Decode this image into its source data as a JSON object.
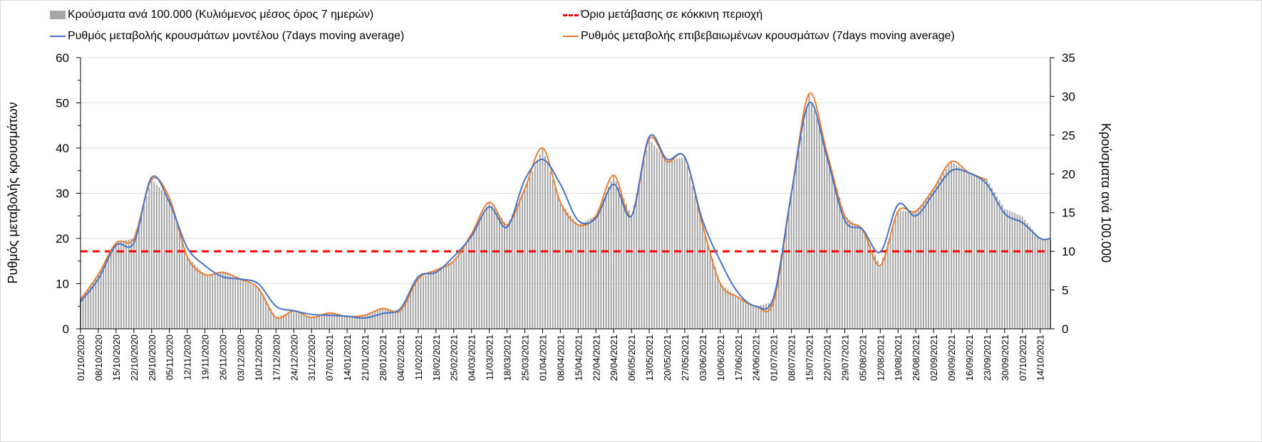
{
  "chart_data": {
    "type": "bar+line",
    "legend": [
      {
        "label": "Κρούσματα ανά 100.000 (Κυλιόμενος μέσος όρος 7 ημερών)",
        "color": "#a6a6a6",
        "kind": "bar"
      },
      {
        "label": "Όριο μετάβασης σε κόκκινη περιοχή",
        "color": "#ff0000",
        "kind": "dashed"
      },
      {
        "label": "Ρυθμός μεταβολής κρουσμάτων μοντέλου (7days moving average)",
        "color": "#4472c4",
        "kind": "line"
      },
      {
        "label": "Ρυθμός μεταβολής επιβεβαιωμένων κρουσμάτων (7days moving average)",
        "color": "#ed7d31",
        "kind": "line"
      }
    ],
    "legend_position": "top",
    "ylabel_left": "Ρυθμός μεταβολής κρουσμάτων",
    "ylabel_right": "Κρούσματα ανά 100.000",
    "ylim_left": [
      0,
      60
    ],
    "yticks_left": [
      0,
      10,
      20,
      30,
      40,
      50,
      60
    ],
    "ylim_right": [
      0,
      35
    ],
    "yticks_right": [
      0,
      5,
      10,
      15,
      20,
      25,
      30,
      35
    ],
    "grid": true,
    "x_tick_labels": [
      "01/10/2020",
      "08/10/2020",
      "15/10/2020",
      "22/10/2020",
      "29/10/2020",
      "05/11/2020",
      "12/11/2020",
      "19/11/2020",
      "26/11/2020",
      "03/12/2020",
      "10/12/2020",
      "17/12/2020",
      "24/12/2020",
      "31/12/2020",
      "07/01/2021",
      "14/01/2021",
      "21/01/2021",
      "28/01/2021",
      "04/02/2021",
      "11/02/2021",
      "18/02/2021",
      "25/02/2021",
      "04/03/2021",
      "11/03/2021",
      "18/03/2021",
      "25/03/2021",
      "01/04/2021",
      "08/04/2021",
      "15/04/2021",
      "22/04/2021",
      "29/04/2021",
      "06/05/2021",
      "13/05/2021",
      "20/05/2021",
      "27/05/2021",
      "03/06/2021",
      "10/06/2021",
      "17/06/2021",
      "24/06/2021",
      "01/07/2021",
      "08/07/2021",
      "15/07/2021",
      "22/07/2021",
      "29/07/2021",
      "05/08/2021",
      "12/08/2021",
      "19/08/2021",
      "26/08/2021",
      "02/09/2021",
      "09/09/2021",
      "16/09/2021",
      "23/09/2021",
      "30/09/2021",
      "07/10/2021",
      "14/10/2021"
    ],
    "sample_days": [
      0,
      7,
      14,
      21,
      28,
      35,
      42,
      49,
      56,
      63,
      70,
      77,
      84,
      91,
      98,
      105,
      112,
      119,
      126,
      133,
      140,
      147,
      154,
      161,
      168,
      175,
      182,
      189,
      196,
      203,
      210,
      217,
      224,
      231,
      238,
      245,
      252,
      259,
      266,
      273,
      280,
      287,
      294,
      301,
      308,
      315,
      322,
      329,
      336,
      343,
      350,
      357,
      364,
      371,
      378,
      382
    ],
    "threshold_right": 10,
    "bars_per_100k": [
      3.8,
      7,
      11.1,
      11.7,
      19.3,
      16.9,
      9.3,
      7,
      7.3,
      6.4,
      5.3,
      1.5,
      2.3,
      1.5,
      2,
      1.6,
      1.8,
      2.6,
      2.3,
      6.4,
      7.6,
      8.8,
      12.3,
      16.3,
      13.4,
      18.1,
      23.3,
      16.3,
      13.4,
      14.6,
      19.8,
      14.6,
      24.5,
      21.6,
      22.2,
      13.4,
      5.8,
      4.1,
      2.9,
      3.5,
      17.5,
      30.3,
      22.8,
      14.6,
      12.8,
      8.2,
      15.2,
      15.2,
      18.1,
      21.6,
      20.1,
      19.3,
      15.5,
      14.5,
      11.5,
      11.5
    ],
    "model_rate": [
      6,
      11,
      18.5,
      19,
      33.5,
      28,
      18,
      14,
      11.5,
      11,
      10,
      5,
      4,
      3.2,
      3,
      2.8,
      2.4,
      3.4,
      4.5,
      11.5,
      12.5,
      16,
      20.5,
      27,
      22.5,
      33,
      37.5,
      32,
      24,
      24.5,
      32,
      25,
      42.5,
      37.5,
      38,
      24,
      15,
      8,
      5,
      7,
      30,
      50,
      38,
      24,
      22,
      17,
      27.5,
      25,
      30,
      35,
      34.5,
      32,
      25.5,
      23.5,
      20,
      20
    ],
    "confirmed_rate": [
      6.5,
      12,
      19,
      20,
      33,
      29,
      16,
      12,
      12.5,
      11,
      9,
      2.5,
      4,
      2.5,
      3.5,
      2.7,
      3,
      4.5,
      4,
      11,
      13,
      15,
      21,
      28,
      23,
      31,
      40,
      28,
      23,
      25,
      34,
      25,
      42,
      37,
      38,
      23,
      10,
      7,
      5,
      6,
      30,
      52,
      39,
      25,
      22,
      14,
      26,
      26,
      31,
      37,
      34.5,
      33,
      null,
      null,
      null,
      null
    ]
  }
}
